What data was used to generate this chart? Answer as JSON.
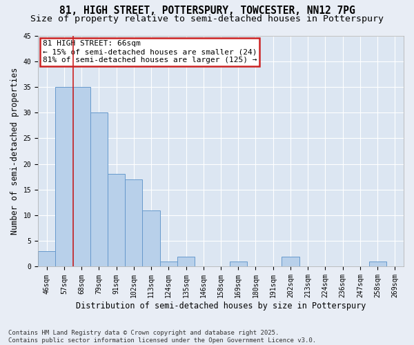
{
  "title1": "81, HIGH STREET, POTTERSPURY, TOWCESTER, NN12 7PG",
  "title2": "Size of property relative to semi-detached houses in Potterspury",
  "xlabel": "Distribution of semi-detached houses by size in Potterspury",
  "ylabel": "Number of semi-detached properties",
  "categories": [
    "46sqm",
    "57sqm",
    "68sqm",
    "79sqm",
    "91sqm",
    "102sqm",
    "113sqm",
    "124sqm",
    "135sqm",
    "146sqm",
    "158sqm",
    "169sqm",
    "180sqm",
    "191sqm",
    "202sqm",
    "213sqm",
    "224sqm",
    "236sqm",
    "247sqm",
    "258sqm",
    "269sqm"
  ],
  "values": [
    3,
    35,
    35,
    30,
    18,
    17,
    11,
    1,
    2,
    0,
    0,
    1,
    0,
    0,
    2,
    0,
    0,
    0,
    0,
    1,
    0
  ],
  "bar_color": "#b8d0ea",
  "bar_edge_color": "#6699cc",
  "annotation_title": "81 HIGH STREET: 66sqm",
  "annotation_smaller": "← 15% of semi-detached houses are smaller (24)",
  "annotation_larger": "81% of semi-detached houses are larger (125) →",
  "annotation_box_facecolor": "#ffffff",
  "annotation_box_edge": "#cc2222",
  "vline_color": "#cc2222",
  "vline_x_index": 1.5,
  "ylim": [
    0,
    45
  ],
  "yticks": [
    0,
    5,
    10,
    15,
    20,
    25,
    30,
    35,
    40,
    45
  ],
  "background_color": "#e8edf5",
  "plot_background": "#dce6f2",
  "grid_color": "#ffffff",
  "footer1": "Contains HM Land Registry data © Crown copyright and database right 2025.",
  "footer2": "Contains public sector information licensed under the Open Government Licence v3.0.",
  "title_fontsize": 10.5,
  "subtitle_fontsize": 9.5,
  "tick_fontsize": 7,
  "label_fontsize": 8.5,
  "annotation_fontsize": 8,
  "footer_fontsize": 6.5
}
